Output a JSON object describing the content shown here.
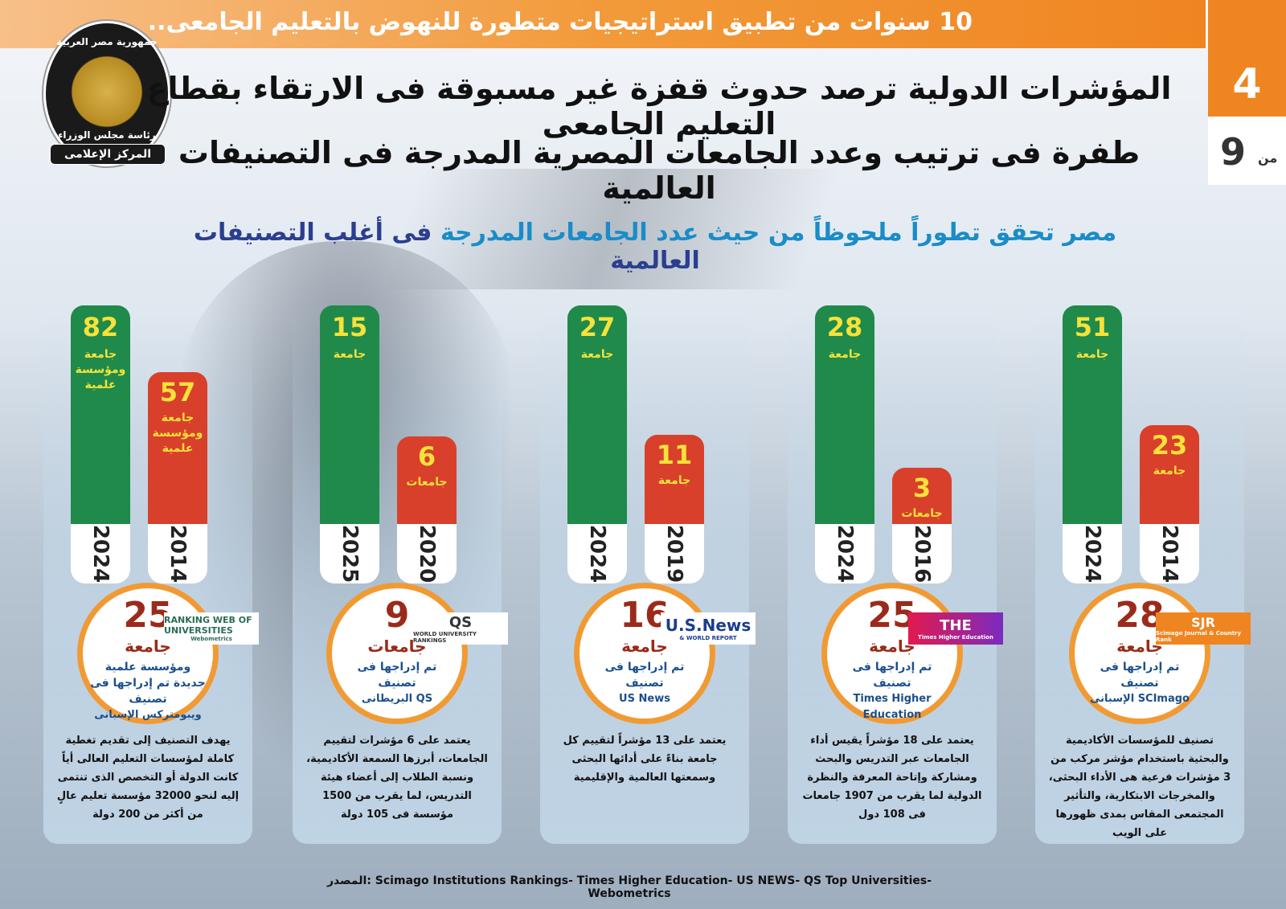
{
  "topbar": {
    "text": "10 سنوات من تطبيق استراتيجيات متطورة للنهوض بالتعليم الجامعى.."
  },
  "page": {
    "current": "4",
    "of_label": "من",
    "total": "9"
  },
  "logo": {
    "top_text": "جمهورية مصر العربية",
    "mid_text": "رئاسة مجلس الوزراء",
    "bottom_text": "المركز الإعلامى"
  },
  "headline": {
    "line1": "المؤشرات الدولية ترصد حدوث قفزة غير مسبوقة فى الارتقاء بقطاع التعليم الجامعى",
    "line2": "طفرة فى ترتيب وعدد الجامعات المصرية المدرجة فى التصنيفات العالمية"
  },
  "subtitle": {
    "part1": "مصر تحقق تطوراً ملحوظاً من حيث عدد الجامعات المدرجة",
    "part2": " فى أغلب التصنيفات العالمية"
  },
  "colors": {
    "green": "#1f8a4a",
    "red": "#d9402b",
    "orange": "#ef8521",
    "yellow": "#f6e23a"
  },
  "chart_data": [
    {
      "type": "bar",
      "name": "SJR",
      "categories": [
        "2024",
        "2014"
      ],
      "values": [
        51,
        23
      ],
      "new_label_num": "28",
      "new_label_unit": "جامعة",
      "desc": "تم إدراجها فى تصنيف",
      "desc2": "SCImago الإسبانى",
      "green": {
        "val": "51",
        "unit": "جامعة",
        "year": "2024"
      },
      "red": {
        "val": "23",
        "unit": "جامعة",
        "year": "2014"
      },
      "brand": "SJR",
      "brand_sub": "Scimago Journal & Country Rank",
      "text": "تصنيف للمؤسسات الأكاديمية والبحثية باستخدام مؤشر مركب من 3 مؤشرات فرعية هى الأداء البحثى، والمخرجات الابتكارية، والتأثير المجتمعى المقاس بمدى ظهورها على الويب"
    },
    {
      "type": "bar",
      "name": "THE",
      "categories": [
        "2024",
        "2016"
      ],
      "values": [
        28,
        3
      ],
      "new_label_num": "25",
      "new_label_unit": "جامعة",
      "desc": "تم إدراجها فى تصنيف",
      "desc2": "Times Higher Education",
      "green": {
        "val": "28",
        "unit": "جامعة",
        "year": "2024"
      },
      "red": {
        "val": "3",
        "unit": "جامعات",
        "year": "2016"
      },
      "brand": "THE",
      "brand_sub": "Times Higher Education",
      "text": "يعتمد على 18 مؤشراً يقيس أداء الجامعات عبر التدريس والبحث ومشاركة وإتاحة المعرفة والنظرة الدولية لما يقرب من 1907 جامعات فى 108 دول"
    },
    {
      "type": "bar",
      "name": "USNews",
      "categories": [
        "2024",
        "2019"
      ],
      "values": [
        27,
        11
      ],
      "new_label_num": "16",
      "new_label_unit": "جامعة",
      "desc": "تم إدراجها فى تصنيف",
      "desc2": "US News",
      "green": {
        "val": "27",
        "unit": "جامعة",
        "year": "2024"
      },
      "red": {
        "val": "11",
        "unit": "جامعة",
        "year": "2019"
      },
      "brand": "U.S.News",
      "brand_sub": "& WORLD REPORT",
      "text": "يعتمد على 13 مؤشراً لتقييم كل جامعة بناءً على أدائها البحثى وسمعتها العالمية والإقليمية"
    },
    {
      "type": "bar",
      "name": "QS",
      "categories": [
        "2025",
        "2020"
      ],
      "values": [
        15,
        6
      ],
      "new_label_num": "9",
      "new_label_unit": "جامعات",
      "desc": "تم إدراجها فى تصنيف",
      "desc2": "QS البريطانى",
      "green": {
        "val": "15",
        "unit": "جامعة",
        "year": "2025"
      },
      "red": {
        "val": "6",
        "unit": "جامعات",
        "year": "2020"
      },
      "brand": "QS",
      "brand_sub": "WORLD UNIVERSITY RANKINGS",
      "text": "يعتمد على 6 مؤشرات لتقييم الجامعات، أبرزها السمعة الأكاديمية، ونسبة الطلاب إلى أعضاء هيئة التدريس، لما يقرب من 1500 مؤسسة فى 105 دولة"
    },
    {
      "type": "bar",
      "name": "Webometrics",
      "categories": [
        "2024",
        "2014"
      ],
      "values": [
        82,
        57
      ],
      "new_label_num": "25",
      "new_label_unit": "جامعة",
      "desc": "ومؤسسة علمية جديدة تم إدراجها فى تصنيف",
      "desc2": "ويبومتركس الإسبانى",
      "green": {
        "val": "82",
        "unit": "جامعة ومؤسسة علمية",
        "year": "2024"
      },
      "red": {
        "val": "57",
        "unit": "جامعة ومؤسسة علمية",
        "year": "2014"
      },
      "brand": "RANKING WEB OF UNIVERSITIES",
      "brand_sub": "Webometrics",
      "text": "يهدف التصنيف إلى تقديم تغطية كاملة لمؤسسات التعليم العالى أياً كانت الدولة أو التخصص الذى تنتمى إليه لنحو 32000 مؤسسة تعليم عالٍ من أكثر من 200 دولة"
    }
  ],
  "source": "المصدر: Scimago Institutions Rankings- Times Higher Education- US NEWS- QS Top Universities- Webometrics"
}
